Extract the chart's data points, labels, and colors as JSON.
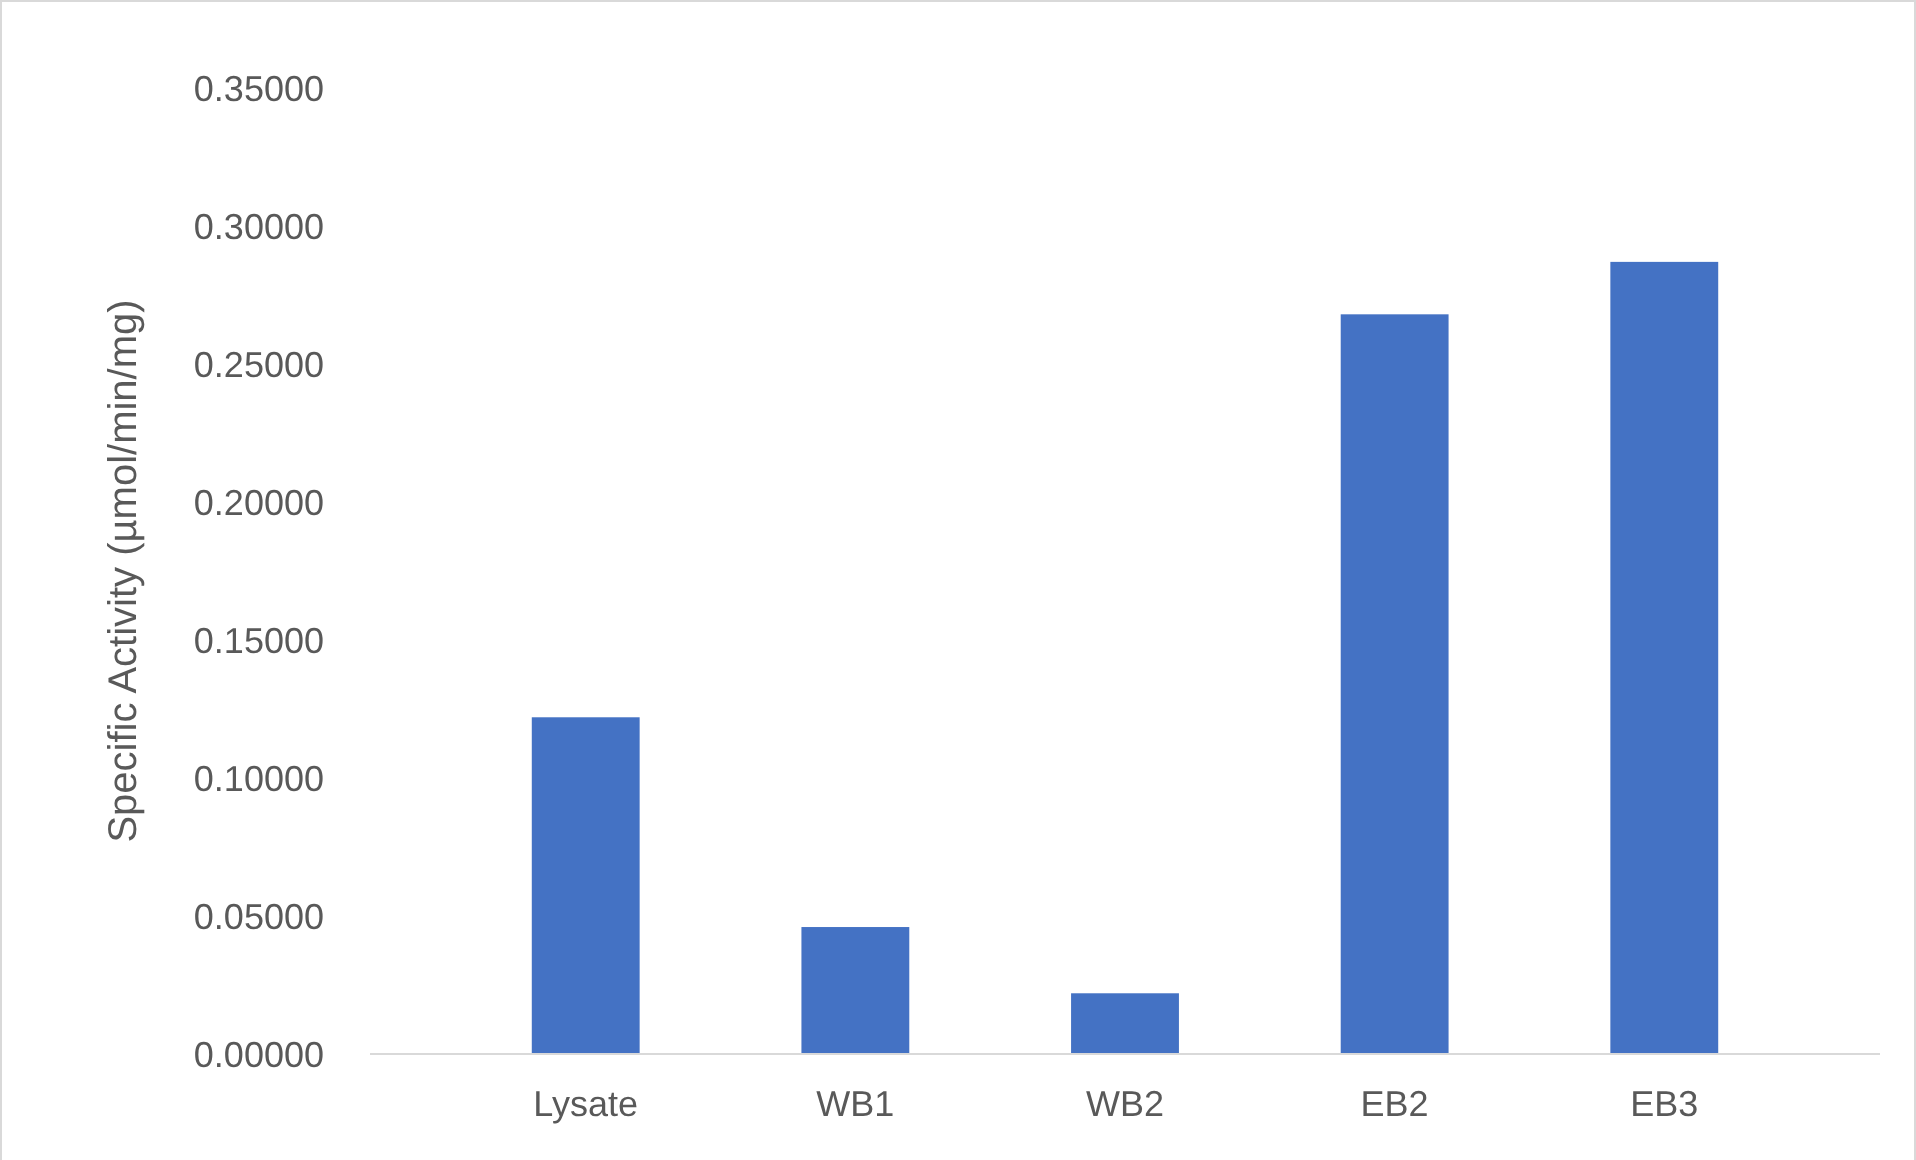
{
  "chart_data": {
    "type": "bar",
    "ylabel": "Specific Activity (µmol/min/mg)",
    "categories": [
      "Lysate",
      "WB1",
      "WB2",
      "EB2",
      "EB3"
    ],
    "values": [
      0.122,
      0.046,
      0.022,
      0.268,
      0.287
    ],
    "color": "#4472c4",
    "ylim": [
      0,
      0.35
    ],
    "yticks": [
      {
        "value": 0,
        "label": "0.00000"
      },
      {
        "value": 0.05,
        "label": "0.05000"
      },
      {
        "value": 0.1,
        "label": "0.10000"
      },
      {
        "value": 0.15,
        "label": "0.15000"
      },
      {
        "value": 0.2,
        "label": "0.20000"
      },
      {
        "value": 0.25,
        "label": "0.25000"
      },
      {
        "value": 0.3,
        "label": "0.30000"
      },
      {
        "value": 0.35,
        "label": "0.35000"
      }
    ],
    "grid": false
  }
}
